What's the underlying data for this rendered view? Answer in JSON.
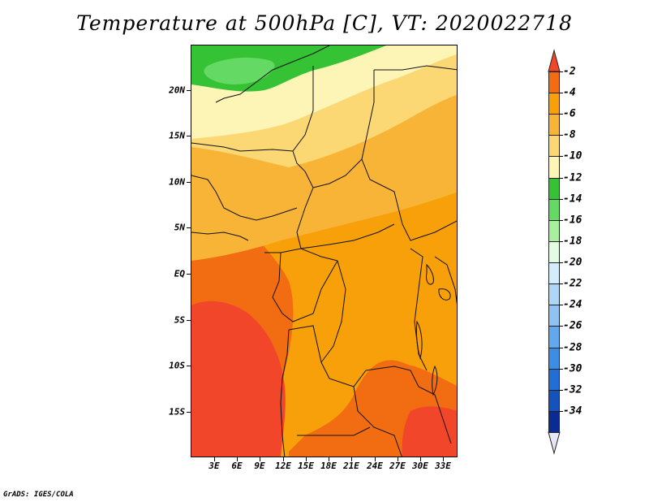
{
  "title": "Temperature at 500hPa [C], VT: 2020022718",
  "credit": "GrADS: IGES/COLA",
  "map": {
    "region": "Central Africa",
    "variable": "Temperature at 500hPa",
    "units": "C",
    "valid_time": "2020022718"
  },
  "y_axis_labels": [
    "20N",
    "15N",
    "10N",
    "5N",
    "EQ",
    "5S",
    "10S",
    "15S"
  ],
  "x_axis_labels": [
    "3E",
    "6E",
    "9E",
    "12E",
    "15E",
    "18E",
    "21E",
    "24E",
    "27E",
    "30E",
    "33E"
  ],
  "legend": {
    "labels": [
      "-2",
      "-4",
      "-6",
      "-8",
      "-10",
      "-12",
      "-14",
      "-16",
      "-18",
      "-20",
      "-22",
      "-24",
      "-26",
      "-28",
      "-30",
      "-32",
      "-34"
    ],
    "colors": [
      "#f2462b",
      "#f26d12",
      "#f7a00a",
      "#f8b436",
      "#fcd874",
      "#fdf5b6",
      "#35c235",
      "#64d964",
      "#a8f0a0",
      "#e2fbe2",
      "#d4edfd",
      "#b0d6f6",
      "#90c3f2",
      "#62a8ec",
      "#3c8de4",
      "#236ed4",
      "#1453bc",
      "#0a2a94",
      "#e6e6f6"
    ]
  },
  "fields": {
    "sahara_cold": "#35c235",
    "sahara_cold2": "#64d964",
    "pale": "#fdf5b6",
    "light": "#fcd874",
    "mid": "#f8b436",
    "orange": "#f7a00a",
    "deep": "#f26d12",
    "red": "#f2462b"
  }
}
